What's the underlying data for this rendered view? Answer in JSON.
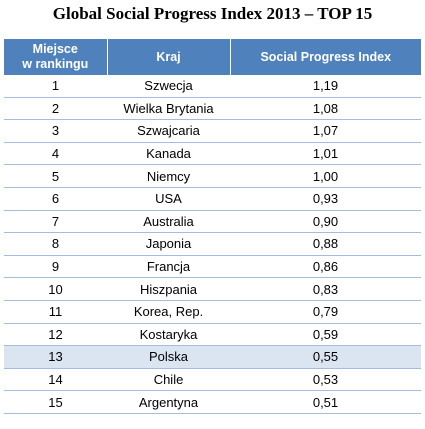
{
  "title": "Global Social Progress Index 2013 – TOP 15",
  "table": {
    "headers": {
      "rank": "Miejsce\nw rankingu",
      "country": "Kraj",
      "index": "Social Progress Index"
    },
    "header_color": "#4f81bd",
    "highlight_color": "#dbe5f1",
    "rows": [
      {
        "rank": "1",
        "country": "Szwecja",
        "index": "1,19"
      },
      {
        "rank": "2",
        "country": "Wielka Brytania",
        "index": "1,08"
      },
      {
        "rank": "3",
        "country": "Szwajcaria",
        "index": "1,07"
      },
      {
        "rank": "4",
        "country": "Kanada",
        "index": "1,01"
      },
      {
        "rank": "5",
        "country": "Niemcy",
        "index": "1,00"
      },
      {
        "rank": "6",
        "country": "USA",
        "index": "0,93"
      },
      {
        "rank": "7",
        "country": "Australia",
        "index": "0,90"
      },
      {
        "rank": "8",
        "country": "Japonia",
        "index": "0,88"
      },
      {
        "rank": "9",
        "country": "Francja",
        "index": "0,86"
      },
      {
        "rank": "10",
        "country": "Hiszpania",
        "index": "0,83"
      },
      {
        "rank": "11",
        "country": "Korea, Rep.",
        "index": "0,79"
      },
      {
        "rank": "12",
        "country": "Kostaryka",
        "index": "0,59"
      },
      {
        "rank": "13",
        "country": "Polska",
        "index": "0,55",
        "highlighted": true
      },
      {
        "rank": "14",
        "country": "Chile",
        "index": "0,53"
      },
      {
        "rank": "15",
        "country": "Argentyna",
        "index": "0,51"
      }
    ]
  }
}
